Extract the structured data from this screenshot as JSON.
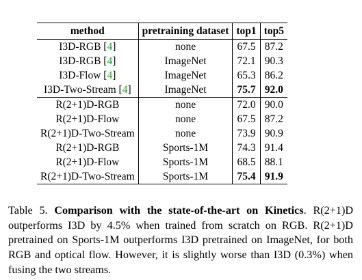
{
  "table": {
    "headers": {
      "method": "method",
      "dataset": "pretraining dataset",
      "top1": "top1",
      "top5": "top5"
    },
    "group1": [
      {
        "method": "I3D-RGB",
        "cite": "4",
        "dataset": "none",
        "top1": "67.5",
        "top5": "87.2",
        "bold1": false,
        "bold5": false
      },
      {
        "method": "I3D-RGB",
        "cite": "4",
        "dataset": "ImageNet",
        "top1": "72.1",
        "top5": "90.3",
        "bold1": false,
        "bold5": false
      },
      {
        "method": "I3D-Flow",
        "cite": "4",
        "dataset": "ImageNet",
        "top1": "65.3",
        "top5": "86.2",
        "bold1": false,
        "bold5": false
      },
      {
        "method": "I3D-Two-Stream",
        "cite": "4",
        "dataset": "ImageNet",
        "top1": "75.7",
        "top5": "92.0",
        "bold1": true,
        "bold5": true
      }
    ],
    "group2": [
      {
        "method": "R(2+1)D-RGB",
        "cite": "",
        "dataset": "none",
        "top1": "72.0",
        "top5": "90.0",
        "bold1": false,
        "bold5": false
      },
      {
        "method": "R(2+1)D-Flow",
        "cite": "",
        "dataset": "none",
        "top1": "67.5",
        "top5": "87.2",
        "bold1": false,
        "bold5": false
      },
      {
        "method": "R(2+1)D-Two-Stream",
        "cite": "",
        "dataset": "none",
        "top1": "73.9",
        "top5": "90.9",
        "bold1": false,
        "bold5": false
      },
      {
        "method": "R(2+1)D-RGB",
        "cite": "",
        "dataset": "Sports-1M",
        "top1": "74.3",
        "top5": "91.4",
        "bold1": false,
        "bold5": false
      },
      {
        "method": "R(2+1)D-Flow",
        "cite": "",
        "dataset": "Sports-1M",
        "top1": "68.5",
        "top5": "88.1",
        "bold1": false,
        "bold5": false
      },
      {
        "method": "R(2+1)D-Two-Stream",
        "cite": "",
        "dataset": "Sports-1M",
        "top1": "75.4",
        "top5": "91.9",
        "bold1": true,
        "bold5": true
      }
    ]
  },
  "caption": {
    "label": "Table 5.",
    "title": "Comparison with the state-of-the-art on Kinetics",
    "body": "R(2+1)D outperforms I3D by 4.5% when trained from scratch on RGB. R(2+1)D pretrained on Sports-1M outperforms I3D pretrained on ImageNet, for both RGB and optical flow. However, it is slightly worse than I3D (0.3%) when fusing the two streams."
  },
  "colors": {
    "citation": "#2ca02c"
  }
}
